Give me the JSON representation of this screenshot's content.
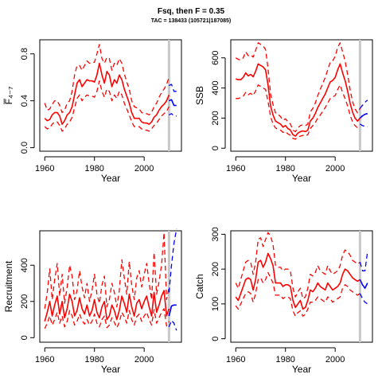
{
  "header": {
    "title": "Fsq, then F = 0.35",
    "subtitle": "TAC = 138433 (105721|187085)"
  },
  "colors": {
    "historic": "#ff0000",
    "forecast": "#0000ff",
    "divider": "#c8c8c8",
    "axis": "#000000"
  },
  "chart_data": [
    {
      "type": "line",
      "ylabel": "F̅₄₋₇",
      "xlabel": "Year",
      "xlim": [
        1958,
        2015
      ],
      "ylim": [
        -0.03,
        0.92
      ],
      "xticks": [
        1960,
        1980,
        2000
      ],
      "yticks": [
        0.0,
        0.4,
        0.8
      ],
      "ytick_labels": [
        "0.0",
        "0.4",
        "0.8"
      ],
      "divider_year": 2010,
      "historic": {
        "years": [
          1960,
          1961,
          1962,
          1963,
          1964,
          1965,
          1966,
          1967,
          1968,
          1969,
          1970,
          1971,
          1972,
          1973,
          1974,
          1975,
          1976,
          1977,
          1978,
          1979,
          1980,
          1981,
          1982,
          1983,
          1984,
          1985,
          1986,
          1987,
          1988,
          1989,
          1990,
          1991,
          1992,
          1993,
          1994,
          1995,
          1996,
          1997,
          1998,
          1999,
          2000,
          2001,
          2002,
          2003,
          2004,
          2005,
          2006,
          2007,
          2008,
          2009,
          2010
        ],
        "median": [
          0.25,
          0.23,
          0.24,
          0.28,
          0.3,
          0.3,
          0.27,
          0.2,
          0.23,
          0.28,
          0.3,
          0.35,
          0.45,
          0.55,
          0.58,
          0.52,
          0.55,
          0.58,
          0.57,
          0.57,
          0.56,
          0.62,
          0.72,
          0.62,
          0.55,
          0.65,
          0.62,
          0.52,
          0.58,
          0.55,
          0.62,
          0.58,
          0.5,
          0.44,
          0.38,
          0.3,
          0.25,
          0.25,
          0.25,
          0.22,
          0.21,
          0.21,
          0.2,
          0.22,
          0.26,
          0.28,
          0.32,
          0.35,
          0.37,
          0.4,
          0.45
        ],
        "lower": [
          0.18,
          0.16,
          0.17,
          0.2,
          0.22,
          0.22,
          0.19,
          0.14,
          0.16,
          0.2,
          0.22,
          0.26,
          0.34,
          0.42,
          0.45,
          0.4,
          0.43,
          0.45,
          0.44,
          0.44,
          0.43,
          0.48,
          0.57,
          0.48,
          0.43,
          0.5,
          0.48,
          0.4,
          0.45,
          0.42,
          0.48,
          0.45,
          0.38,
          0.33,
          0.28,
          0.22,
          0.18,
          0.18,
          0.18,
          0.16,
          0.15,
          0.15,
          0.14,
          0.16,
          0.19,
          0.21,
          0.24,
          0.27,
          0.29,
          0.31,
          0.35
        ],
        "upper": [
          0.38,
          0.32,
          0.33,
          0.37,
          0.4,
          0.4,
          0.36,
          0.3,
          0.32,
          0.38,
          0.4,
          0.48,
          0.62,
          0.7,
          0.7,
          0.66,
          0.7,
          0.74,
          0.72,
          0.72,
          0.73,
          0.8,
          0.88,
          0.76,
          0.72,
          0.77,
          0.76,
          0.66,
          0.72,
          0.7,
          0.76,
          0.72,
          0.63,
          0.56,
          0.5,
          0.4,
          0.35,
          0.34,
          0.33,
          0.3,
          0.29,
          0.29,
          0.28,
          0.3,
          0.35,
          0.38,
          0.43,
          0.47,
          0.5,
          0.54,
          0.6
        ]
      },
      "forecast": {
        "years": [
          2010,
          2011,
          2012,
          2013
        ],
        "median": [
          0.4,
          0.41,
          0.36,
          0.36
        ],
        "lower": [
          0.28,
          0.29,
          0.27,
          0.27
        ],
        "upper": [
          0.53,
          0.54,
          0.48,
          0.48
        ]
      }
    },
    {
      "type": "line",
      "ylabel": "SSB",
      "xlabel": "Year",
      "xlim": [
        1958,
        2015
      ],
      "ylim": [
        -20,
        720
      ],
      "xticks": [
        1960,
        1980,
        2000
      ],
      "yticks": [
        0,
        200,
        400,
        600
      ],
      "ytick_labels": [
        "0",
        "200",
        "400",
        "600"
      ],
      "divider_year": 2010,
      "historic": {
        "years": [
          1960,
          1961,
          1962,
          1963,
          1964,
          1965,
          1966,
          1967,
          1968,
          1969,
          1970,
          1971,
          1972,
          1973,
          1974,
          1975,
          1976,
          1977,
          1978,
          1979,
          1980,
          1981,
          1982,
          1983,
          1984,
          1985,
          1986,
          1987,
          1988,
          1989,
          1990,
          1991,
          1992,
          1993,
          1994,
          1995,
          1996,
          1997,
          1998,
          1999,
          2000,
          2001,
          2002,
          2003,
          2004,
          2005,
          2006,
          2007,
          2008,
          2009,
          2010
        ],
        "median": [
          460,
          455,
          455,
          470,
          500,
          480,
          490,
          475,
          510,
          560,
          550,
          540,
          520,
          420,
          280,
          220,
          180,
          170,
          160,
          140,
          150,
          130,
          120,
          90,
          80,
          100,
          110,
          115,
          110,
          120,
          180,
          200,
          230,
          270,
          300,
          330,
          360,
          400,
          440,
          450,
          470,
          520,
          560,
          500,
          450,
          380,
          300,
          240,
          200,
          180,
          200
        ],
        "lower": [
          330,
          330,
          335,
          345,
          370,
          355,
          365,
          350,
          380,
          420,
          410,
          400,
          390,
          310,
          210,
          160,
          135,
          125,
          120,
          105,
          110,
          95,
          85,
          65,
          60,
          75,
          80,
          85,
          80,
          90,
          130,
          150,
          170,
          200,
          220,
          245,
          270,
          300,
          330,
          340,
          350,
          390,
          420,
          370,
          330,
          280,
          220,
          175,
          150,
          135,
          145
        ],
        "upper": [
          600,
          590,
          585,
          600,
          640,
          615,
          620,
          605,
          650,
          700,
          690,
          680,
          655,
          530,
          360,
          290,
          235,
          225,
          210,
          185,
          195,
          175,
          160,
          120,
          110,
          135,
          150,
          155,
          150,
          160,
          240,
          265,
          300,
          350,
          390,
          430,
          470,
          520,
          570,
          580,
          610,
          670,
          700,
          640,
          580,
          490,
          390,
          310,
          260,
          235,
          265
        ]
      },
      "forecast": {
        "years": [
          2010,
          2011,
          2012,
          2013
        ],
        "median": [
          200,
          215,
          225,
          230
        ],
        "lower": [
          160,
          150,
          145,
          140
        ],
        "upper": [
          265,
          285,
          305,
          320
        ]
      }
    },
    {
      "type": "line",
      "ylabel": "Recruitment",
      "xlabel": "Year",
      "xlim": [
        1958,
        2015
      ],
      "ylim": [
        -25,
        590
      ],
      "xticks": [
        1960,
        1980,
        2000
      ],
      "yticks": [
        0,
        200,
        400
      ],
      "ytick_labels": [
        "0",
        "200",
        "400"
      ],
      "divider_year": 2010,
      "historic": {
        "years": [
          1960,
          1961,
          1962,
          1963,
          1964,
          1965,
          1966,
          1967,
          1968,
          1969,
          1970,
          1971,
          1972,
          1973,
          1974,
          1975,
          1976,
          1977,
          1978,
          1979,
          1980,
          1981,
          1982,
          1983,
          1984,
          1985,
          1986,
          1987,
          1988,
          1989,
          1990,
          1991,
          1992,
          1993,
          1994,
          1995,
          1996,
          1997,
          1998,
          1999,
          2000,
          2001,
          2002,
          2003,
          2004,
          2005,
          2006,
          2007,
          2008,
          2009,
          2010
        ],
        "median": [
          90,
          140,
          200,
          120,
          180,
          230,
          130,
          200,
          110,
          160,
          240,
          200,
          120,
          150,
          220,
          160,
          130,
          180,
          120,
          150,
          210,
          140,
          110,
          170,
          200,
          100,
          120,
          180,
          150,
          100,
          150,
          230,
          190,
          140,
          240,
          170,
          120,
          190,
          210,
          160,
          200,
          230,
          170,
          120,
          250,
          140,
          180,
          230,
          260,
          120,
          160
        ],
        "lower": [
          50,
          80,
          120,
          70,
          100,
          140,
          80,
          120,
          60,
          90,
          150,
          120,
          70,
          90,
          130,
          95,
          75,
          100,
          70,
          90,
          130,
          80,
          60,
          100,
          120,
          55,
          70,
          110,
          85,
          55,
          85,
          140,
          115,
          80,
          150,
          100,
          70,
          115,
          130,
          90,
          120,
          140,
          100,
          70,
          155,
          80,
          110,
          140,
          160,
          65,
          90
        ],
        "upper": [
          160,
          250,
          380,
          210,
          320,
          410,
          230,
          350,
          190,
          280,
          400,
          340,
          210,
          260,
          370,
          280,
          220,
          300,
          200,
          260,
          350,
          240,
          190,
          290,
          340,
          170,
          210,
          300,
          250,
          170,
          260,
          430,
          330,
          240,
          420,
          290,
          210,
          330,
          370,
          280,
          350,
          410,
          300,
          210,
          470,
          240,
          310,
          400,
          580,
          210,
          280
        ]
      },
      "forecast": {
        "years": [
          2010,
          2011,
          2012,
          2013
        ],
        "median": [
          120,
          175,
          180,
          180
        ],
        "lower": [
          60,
          95,
          80,
          40
        ],
        "upper": [
          250,
          400,
          520,
          600
        ]
      }
    },
    {
      "type": "line",
      "ylabel": "Catch",
      "xlabel": "Year",
      "xlim": [
        1958,
        2015
      ],
      "ylim": [
        -10,
        310
      ],
      "xticks": [
        1960,
        1980,
        2000
      ],
      "yticks": [
        0,
        100,
        200,
        300
      ],
      "ytick_labels": [
        "0",
        "100",
        "200",
        "300"
      ],
      "divider_year": 2010,
      "historic": {
        "years": [
          1960,
          1961,
          1962,
          1963,
          1964,
          1965,
          1966,
          1967,
          1968,
          1969,
          1970,
          1971,
          1972,
          1973,
          1974,
          1975,
          1976,
          1977,
          1978,
          1979,
          1980,
          1981,
          1982,
          1983,
          1984,
          1985,
          1986,
          1987,
          1988,
          1989,
          1990,
          1991,
          1992,
          1993,
          1994,
          1995,
          1996,
          1997,
          1998,
          1999,
          2000,
          2001,
          2002,
          2003,
          2004,
          2005,
          2006,
          2007,
          2008,
          2009,
          2010
        ],
        "median": [
          120,
          110,
          130,
          150,
          170,
          175,
          170,
          140,
          170,
          220,
          225,
          205,
          220,
          245,
          230,
          210,
          160,
          160,
          160,
          150,
          155,
          155,
          150,
          110,
          90,
          100,
          110,
          85,
          90,
          110,
          140,
          135,
          145,
          160,
          150,
          145,
          140,
          160,
          150,
          140,
          145,
          150,
          160,
          185,
          200,
          195,
          185,
          175,
          170,
          165,
          170
        ],
        "lower": [
          95,
          85,
          100,
          115,
          130,
          135,
          130,
          105,
          130,
          170,
          175,
          160,
          170,
          190,
          175,
          160,
          125,
          125,
          125,
          115,
          120,
          120,
          115,
          80,
          65,
          75,
          80,
          65,
          70,
          85,
          105,
          105,
          110,
          120,
          115,
          110,
          105,
          120,
          115,
          105,
          110,
          115,
          120,
          145,
          155,
          150,
          140,
          135,
          130,
          125,
          130
        ],
        "upper": [
          160,
          145,
          170,
          195,
          220,
          225,
          220,
          185,
          220,
          285,
          290,
          265,
          285,
          305,
          295,
          270,
          210,
          205,
          205,
          195,
          200,
          200,
          195,
          145,
          120,
          135,
          145,
          115,
          120,
          145,
          185,
          180,
          190,
          210,
          195,
          190,
          185,
          210,
          195,
          185,
          190,
          195,
          210,
          240,
          255,
          250,
          240,
          225,
          220,
          215,
          220
        ]
      },
      "forecast": {
        "years": [
          2010,
          2011,
          2012,
          2013
        ],
        "median": [
          170,
          155,
          145,
          160
        ],
        "lower": [
          130,
          115,
          105,
          100
        ],
        "upper": [
          220,
          195,
          195,
          250
        ]
      }
    }
  ]
}
